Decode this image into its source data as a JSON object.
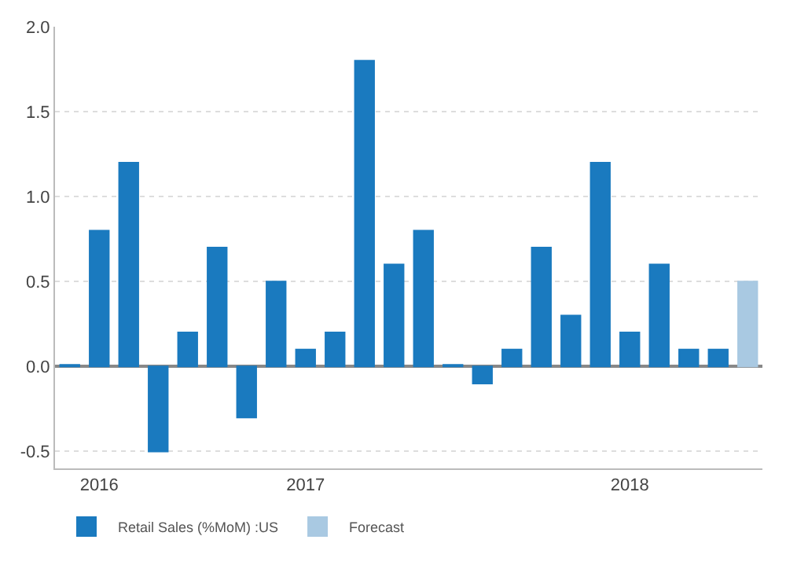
{
  "chart_data": {
    "type": "bar",
    "categories": [
      null,
      "2016",
      null,
      null,
      null,
      null,
      null,
      null,
      "2017",
      null,
      null,
      null,
      null,
      null,
      null,
      null,
      null,
      null,
      null,
      "2018",
      null,
      null,
      null,
      null
    ],
    "series": [
      {
        "name": "Retail Sales (%MoM) :US",
        "color": "#1a7abf",
        "values": [
          0.01,
          0.8,
          1.2,
          -0.5,
          0.2,
          0.7,
          -0.3,
          0.5,
          0.1,
          0.2,
          1.8,
          0.6,
          0.8,
          0.01,
          -0.1,
          0.1,
          0.7,
          0.3,
          1.2,
          0.2,
          0.6,
          0.1,
          0.1,
          null
        ]
      },
      {
        "name": "Forecast",
        "color": "#a9c9e2",
        "values": [
          null,
          null,
          null,
          null,
          null,
          null,
          null,
          null,
          null,
          null,
          null,
          null,
          null,
          null,
          null,
          null,
          null,
          null,
          null,
          null,
          null,
          null,
          null,
          0.5
        ]
      }
    ],
    "ylim": [
      -0.6,
      2.0
    ],
    "yticks": [
      {
        "value": -0.5,
        "label": "-0.5"
      },
      {
        "value": 0,
        "label": "0.0"
      },
      {
        "value": 0.5,
        "label": "0.5"
      },
      {
        "value": 1,
        "label": "1.0"
      },
      {
        "value": 1.5,
        "label": "1.5"
      },
      {
        "value": 2,
        "label": "2.0"
      }
    ],
    "grid": "y",
    "legend": "bottom left"
  }
}
